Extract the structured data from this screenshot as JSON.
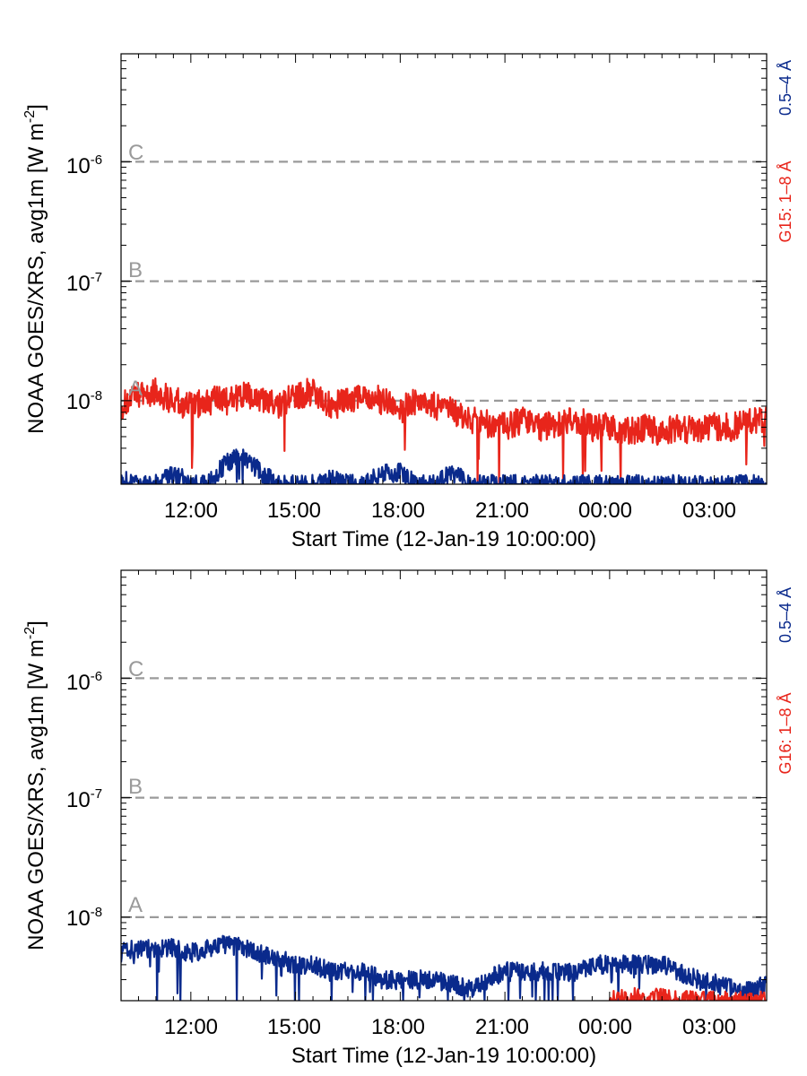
{
  "chart_data": [
    {
      "type": "line",
      "panel": "top",
      "ylabel": "NOAA GOES/XRS, avg1m [W m",
      "ylabel_sup": "-2",
      "ylabel_close": "]",
      "xlabel": "Start Time (12-Jan-19 10:00:00)",
      "x_start": "2019-01-12T10:00:00",
      "x_end": "2019-01-13T04:30:00",
      "yscale": "log",
      "ylim": [
        2e-09,
        8e-06
      ],
      "x_ticks": [
        "12:00",
        "15:00",
        "18:00",
        "21:00",
        "00:00",
        "03:00"
      ],
      "y_ticks": [
        {
          "value": 1e-06,
          "base": "10",
          "exp": "-6"
        },
        {
          "value": 1e-07,
          "base": "10",
          "exp": "-7"
        },
        {
          "value": 1e-08,
          "base": "10",
          "exp": "-8"
        }
      ],
      "flare_classes": [
        {
          "label": "C",
          "value": 1e-06
        },
        {
          "label": "B",
          "value": 1e-07
        },
        {
          "label": "A",
          "value": 1e-08
        }
      ],
      "channel_labels": [
        {
          "text": "0.5–4 Å",
          "color": "#0a2a8c"
        },
        {
          "text": "G15: 1–8 Å",
          "color": "#e8251b"
        }
      ],
      "series": [
        {
          "name": "1–8 Å",
          "color": "#e8251b",
          "times": [
            "10:00",
            "10:30",
            "11:00",
            "11:30",
            "12:00",
            "12:30",
            "13:00",
            "13:30",
            "14:00",
            "14:30",
            "15:00",
            "15:30",
            "16:00",
            "16:30",
            "17:00",
            "17:30",
            "18:00",
            "18:30",
            "19:00",
            "19:30",
            "20:00",
            "20:30",
            "21:00",
            "21:30",
            "22:00",
            "22:30",
            "23:00",
            "23:30",
            "00:00",
            "00:30",
            "01:00",
            "01:30",
            "02:00",
            "02:30",
            "03:00",
            "03:30",
            "04:00",
            "04:30"
          ],
          "values": [
            9e-09,
            1.1e-08,
            1.2e-08,
            1e-08,
            9e-09,
            1e-08,
            1e-08,
            1.1e-08,
            1e-08,
            9e-09,
            1.1e-08,
            1.2e-08,
            9e-09,
            1e-08,
            1.1e-08,
            1e-08,
            9e-09,
            1e-08,
            9e-09,
            8e-09,
            7e-09,
            6.5e-09,
            6e-09,
            7e-09,
            6e-09,
            6.5e-09,
            7e-09,
            6e-09,
            6e-09,
            5.5e-09,
            6e-09,
            5.5e-09,
            6e-09,
            5.5e-09,
            6e-09,
            6e-09,
            6.5e-09,
            7e-09
          ]
        },
        {
          "name": "0.5–4 Å",
          "color": "#0a2a8c",
          "times": [
            "10:00",
            "10:30",
            "11:00",
            "11:30",
            "12:00",
            "12:30",
            "13:00",
            "13:30",
            "14:00",
            "14:30",
            "15:00",
            "15:30",
            "16:00",
            "16:30",
            "17:00",
            "17:30",
            "18:00",
            "18:30",
            "19:00",
            "19:30",
            "20:00",
            "20:30",
            "21:00",
            "21:30",
            "22:00",
            "22:30",
            "23:00",
            "23:30",
            "00:00",
            "00:30",
            "01:00",
            "01:30",
            "02:00",
            "02:30",
            "03:00",
            "03:30",
            "04:00",
            "04:30"
          ],
          "values": [
            2.2e-09,
            2e-09,
            2e-09,
            2.5e-09,
            2e-09,
            2e-09,
            3e-09,
            3.5e-09,
            2.5e-09,
            2e-09,
            2e-09,
            2e-09,
            2.2e-09,
            2e-09,
            2e-09,
            2.5e-09,
            2.5e-09,
            2e-09,
            2e-09,
            2.5e-09,
            2e-09,
            2e-09,
            2e-09,
            2e-09,
            2e-09,
            2e-09,
            2e-09,
            2e-09,
            2e-09,
            2e-09,
            2e-09,
            2e-09,
            2e-09,
            2e-09,
            2e-09,
            2e-09,
            2e-09,
            2e-09
          ]
        }
      ]
    },
    {
      "type": "line",
      "panel": "bottom",
      "ylabel": "NOAA GOES/XRS, avg1m [W m",
      "ylabel_sup": "-2",
      "ylabel_close": "]",
      "xlabel": "Start Time (12-Jan-19 10:00:00)",
      "x_start": "2019-01-12T10:00:00",
      "x_end": "2019-01-13T04:30:00",
      "yscale": "log",
      "ylim": [
        2e-09,
        8e-06
      ],
      "x_ticks": [
        "12:00",
        "15:00",
        "18:00",
        "21:00",
        "00:00",
        "03:00"
      ],
      "y_ticks": [
        {
          "value": 1e-06,
          "base": "10",
          "exp": "-6"
        },
        {
          "value": 1e-07,
          "base": "10",
          "exp": "-7"
        },
        {
          "value": 1e-08,
          "base": "10",
          "exp": "-8"
        }
      ],
      "flare_classes": [
        {
          "label": "C",
          "value": 1e-06
        },
        {
          "label": "B",
          "value": 1e-07
        },
        {
          "label": "A",
          "value": 1e-08
        }
      ],
      "channel_labels": [
        {
          "text": "0.5–4 Å",
          "color": "#0a2a8c"
        },
        {
          "text": "G16: 1–8 Å",
          "color": "#e8251b"
        }
      ],
      "series": [
        {
          "name": "0.5–4 Å",
          "color": "#0a2a8c",
          "times": [
            "10:00",
            "10:30",
            "11:00",
            "11:30",
            "12:00",
            "12:30",
            "13:00",
            "13:30",
            "14:00",
            "14:30",
            "15:00",
            "15:30",
            "16:00",
            "16:30",
            "17:00",
            "17:30",
            "18:00",
            "18:30",
            "19:00",
            "19:30",
            "20:00",
            "20:30",
            "21:00",
            "21:30",
            "22:00",
            "22:30",
            "23:00",
            "23:30",
            "00:00",
            "00:30",
            "01:00",
            "01:30",
            "02:00",
            "02:30",
            "03:00",
            "03:30",
            "04:00",
            "04:30"
          ],
          "values": [
            5e-09,
            5.5e-09,
            5.5e-09,
            5.5e-09,
            5e-09,
            5.5e-09,
            6e-09,
            5.5e-09,
            5e-09,
            4.5e-09,
            4e-09,
            4e-09,
            3.5e-09,
            3.5e-09,
            3.5e-09,
            3e-09,
            3e-09,
            3e-09,
            3e-09,
            2.8e-09,
            2.5e-09,
            3e-09,
            3.5e-09,
            3.5e-09,
            3.5e-09,
            3.5e-09,
            3.5e-09,
            4e-09,
            4e-09,
            4e-09,
            4e-09,
            4e-09,
            3.5e-09,
            3e-09,
            2.8e-09,
            2.5e-09,
            2.4e-09,
            2.8e-09
          ]
        },
        {
          "name": "1–8 Å",
          "color": "#e8251b",
          "times": [
            "00:00",
            "00:30",
            "01:00",
            "01:30",
            "02:00",
            "02:30",
            "03:00",
            "03:30",
            "04:00",
            "04:30"
          ],
          "values": [
            2.1e-09,
            2.1e-09,
            2.2e-09,
            2.1e-09,
            2e-09,
            2.1e-09,
            2e-09,
            2e-09,
            2e-09,
            2e-09
          ]
        }
      ]
    }
  ]
}
